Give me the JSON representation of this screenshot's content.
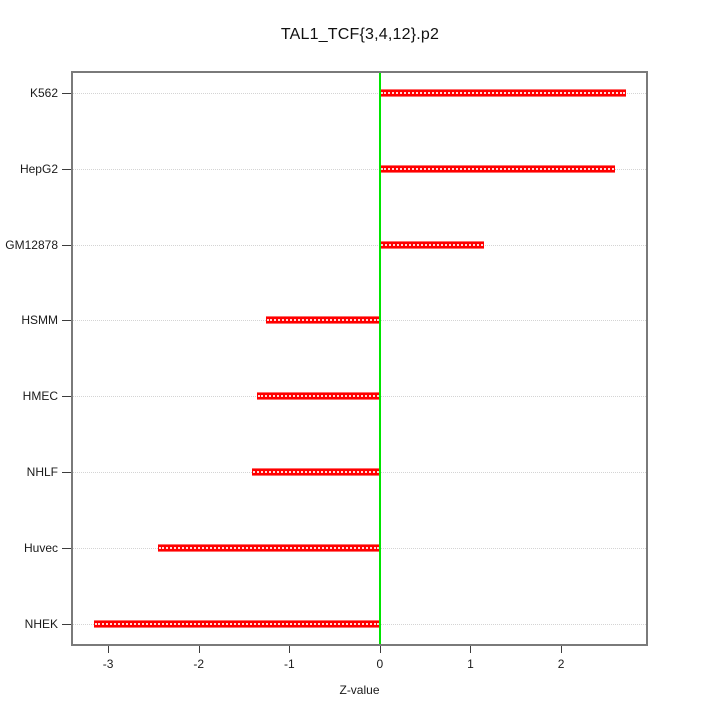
{
  "chart_data": {
    "type": "bar",
    "orientation": "horizontal",
    "title": "TAL1_TCF{3,4,12}.p2",
    "xlabel": "Z-value",
    "ylabel": "",
    "categories": [
      "K562",
      "HepG2",
      "GM12878",
      "HSMM",
      "HMEC",
      "NHLF",
      "Huvec",
      "NHEK"
    ],
    "values": [
      2.72,
      2.6,
      1.15,
      -1.26,
      -1.36,
      -1.41,
      -2.45,
      -3.16
    ],
    "x_ticks": [
      -3,
      -2,
      -1,
      0,
      1,
      2
    ],
    "xlim": [
      -3.41,
      2.96
    ],
    "bar_color": "#FF0000",
    "bar_edge_color": "#FF6B6B",
    "zero_line_color": "#00E400",
    "grid": {
      "style": "horizontal-dotted",
      "color": "#D4D4D4"
    },
    "legend": "none"
  }
}
